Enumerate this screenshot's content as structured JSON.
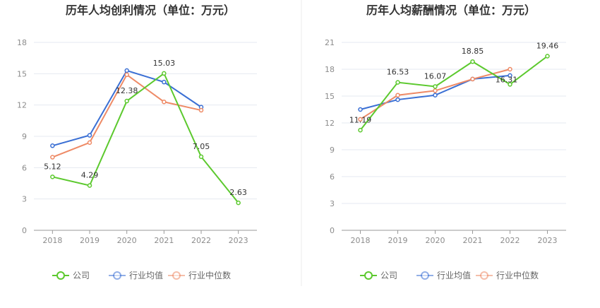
{
  "colors": {
    "company": "#5cc92e",
    "avg": "#3a6fd4",
    "median": "#ee8a66",
    "grid": "#e6e9f0",
    "axis": "#999999"
  },
  "chart_data": [
    {
      "type": "line",
      "title": "历年人均创利情况（单位：万元）",
      "categories": [
        "2018",
        "2019",
        "2020",
        "2021",
        "2022",
        "2023"
      ],
      "ylim": [
        0,
        18
      ],
      "yticks": [
        "0",
        "3",
        "6",
        "9",
        "12",
        "15",
        "18"
      ],
      "grid": true,
      "legend_position": "bottom",
      "series": [
        {
          "name": "公司",
          "values": [
            5.12,
            4.29,
            12.38,
            15.03,
            7.05,
            2.63
          ],
          "labels": [
            "5.12",
            "4.29",
            "12.38",
            "15.03",
            "7.05",
            "2.63"
          ]
        },
        {
          "name": "行业均值",
          "values": [
            8.1,
            9.1,
            15.3,
            14.2,
            11.8,
            null
          ]
        },
        {
          "name": "行业中位数",
          "values": [
            7.0,
            8.4,
            14.9,
            12.3,
            11.5,
            null
          ]
        }
      ]
    },
    {
      "type": "line",
      "title": "历年人均薪酬情况（单位：万元）",
      "categories": [
        "2018",
        "2019",
        "2020",
        "2021",
        "2022",
        "2023"
      ],
      "ylim": [
        0,
        21
      ],
      "yticks": [
        "0",
        "3",
        "6",
        "9",
        "12",
        "15",
        "18",
        "21"
      ],
      "grid": true,
      "legend_position": "bottom",
      "series": [
        {
          "name": "公司",
          "values": [
            11.19,
            16.53,
            16.07,
            18.85,
            16.31,
            19.46
          ],
          "labels": [
            "11.19",
            "16.53",
            "16.07",
            "18.85",
            "16.31",
            "19.46"
          ]
        },
        {
          "name": "行业均值",
          "values": [
            13.5,
            14.6,
            15.1,
            16.9,
            17.3,
            null
          ]
        },
        {
          "name": "行业中位数",
          "values": [
            12.4,
            15.1,
            15.6,
            16.9,
            18.0,
            null
          ]
        }
      ]
    }
  ]
}
